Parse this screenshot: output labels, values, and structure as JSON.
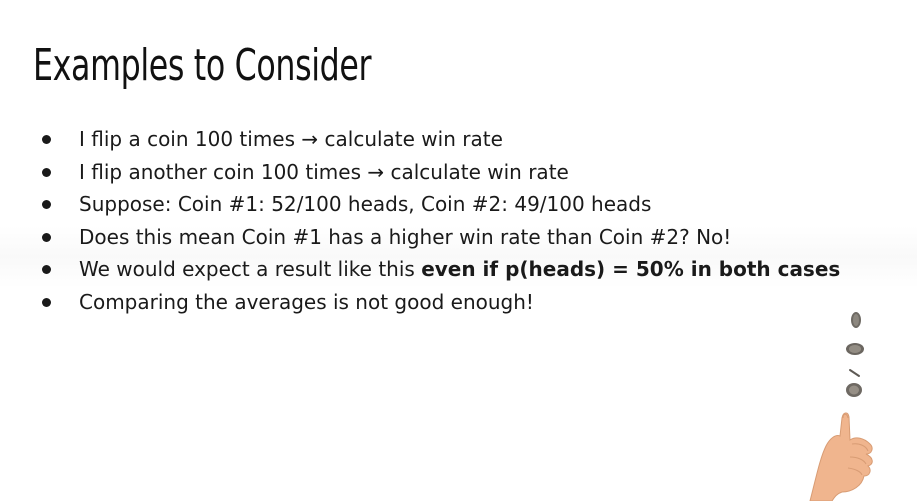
{
  "slide": {
    "title": "Examples to Consider",
    "bullets": [
      {
        "text": "I flip a coin 100 times → calculate win rate",
        "bold": ""
      },
      {
        "text": "I flip another coin 100 times → calculate win rate",
        "bold": ""
      },
      {
        "text": "Suppose: Coin #1: 52/100 heads, Coin #2: 49/100 heads",
        "bold": ""
      },
      {
        "text": "Does this mean Coin #1 has a higher win rate than Coin #2? No!",
        "bold": ""
      },
      {
        "text": "We would expect a result like this ",
        "bold": "even if p(heads) = 50% in both cases"
      },
      {
        "text": "Comparing the averages is not good enough!",
        "bold": ""
      }
    ],
    "illustration": "coin-flip-hand-icon",
    "colors": {
      "background": "#ffffff",
      "text": "#1a1a1a",
      "skin": "#f0b58e"
    }
  }
}
